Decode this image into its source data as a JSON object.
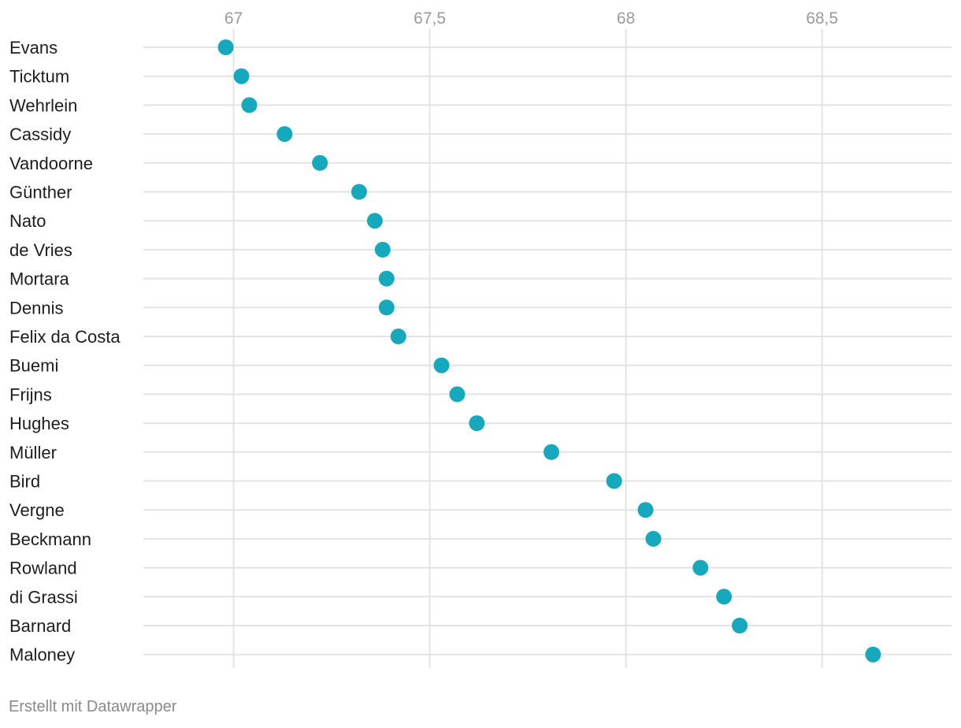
{
  "chart_data": {
    "type": "scatter",
    "orientation": "horizontal-dot-plot",
    "xlim": [
      66.77,
      68.83
    ],
    "xticks": [
      67,
      67.5,
      68,
      68.5
    ],
    "xtick_labels": [
      "67",
      "67,5",
      "68",
      "68,5"
    ],
    "categories": [
      "Evans",
      "Ticktum",
      "Wehrlein",
      "Cassidy",
      "Vandoorne",
      "Günther",
      "Nato",
      "de Vries",
      "Mortara",
      "Dennis",
      "Felix da Costa",
      "Buemi",
      "Frijns",
      "Hughes",
      "Müller",
      "Bird",
      "Vergne",
      "Beckmann",
      "Rowland",
      "di Grassi",
      "Barnard",
      "Maloney"
    ],
    "values": [
      66.98,
      67.02,
      67.04,
      67.13,
      67.22,
      67.32,
      67.36,
      67.38,
      67.39,
      67.39,
      67.42,
      67.53,
      67.57,
      67.62,
      67.81,
      67.97,
      68.05,
      68.07,
      68.19,
      68.25,
      68.29,
      68.63
    ],
    "dot_color": "#16a8bc",
    "grid": true
  },
  "footer": {
    "credit": "Erstellt mit Datawrapper"
  }
}
